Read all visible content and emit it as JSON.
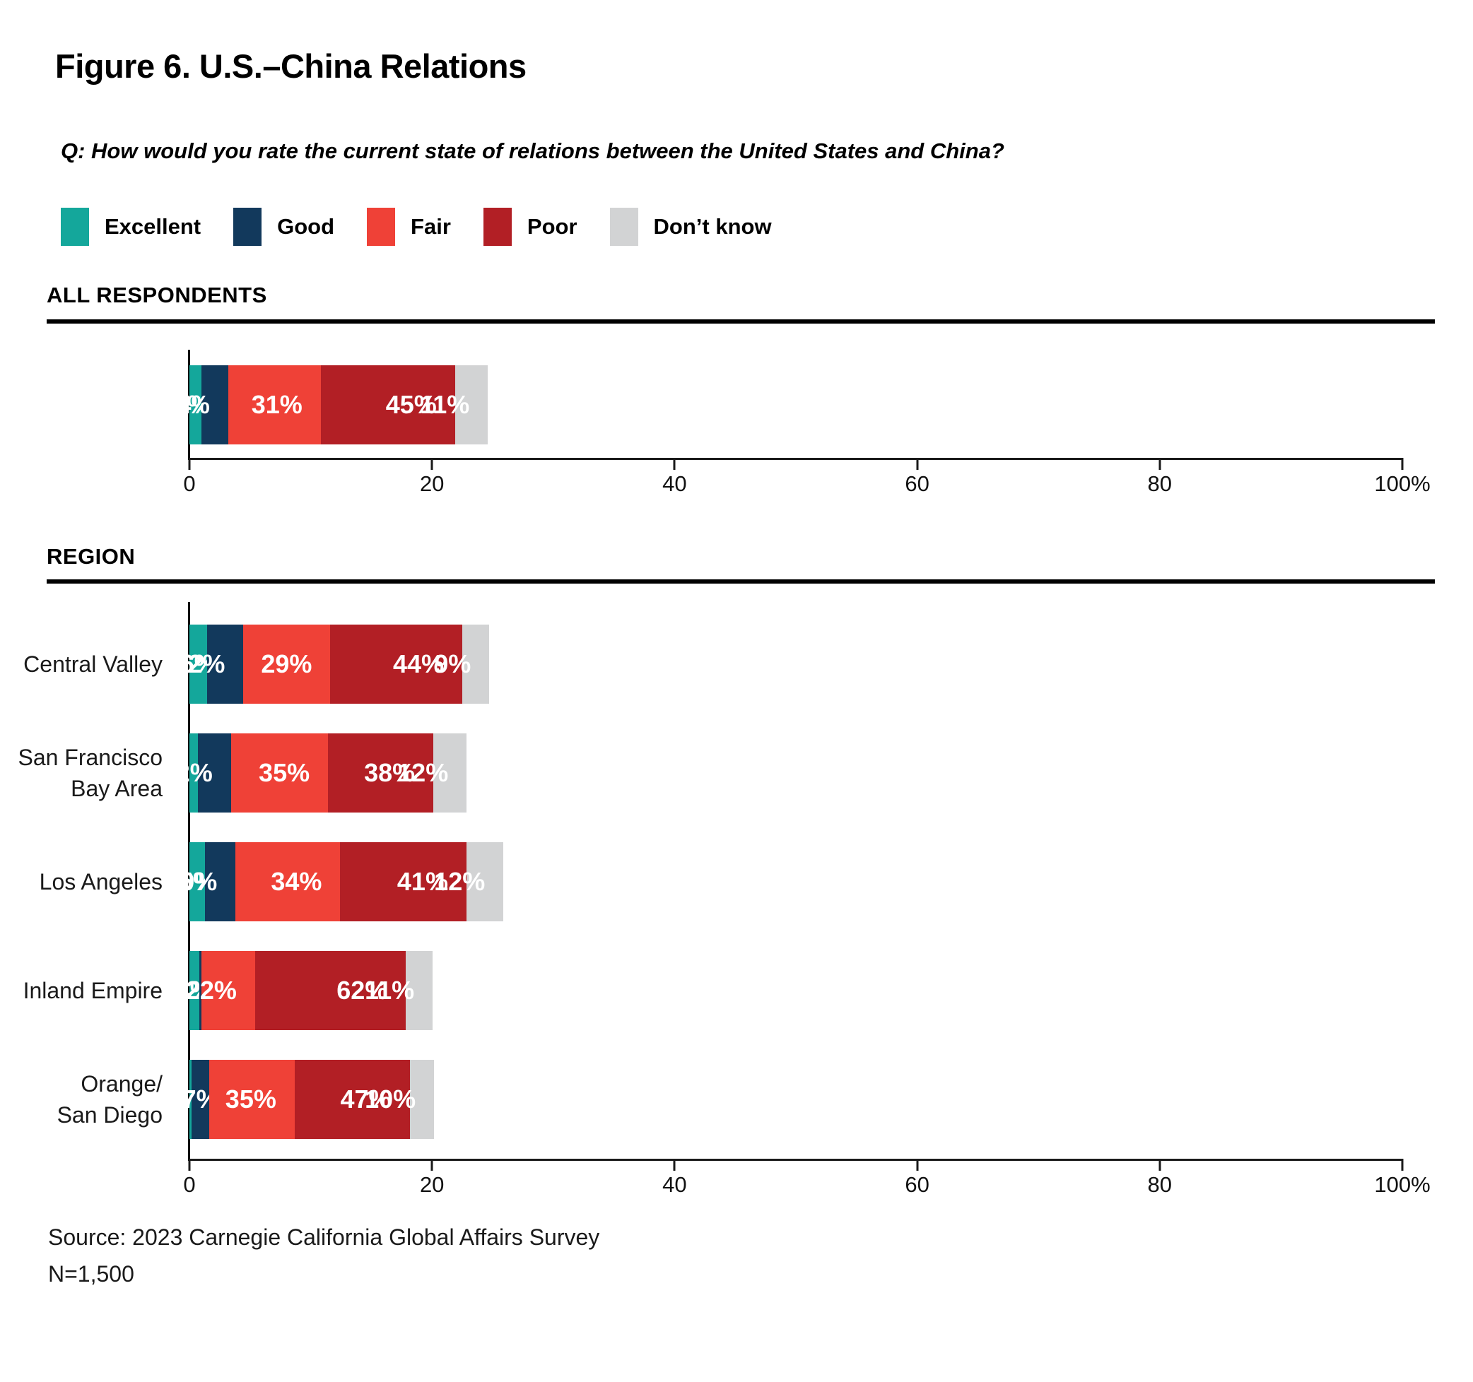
{
  "title": "Figure 6. U.S.–China Relations",
  "question": "Q: How would you rate the current state of relations between the United States and China?",
  "legend": [
    {
      "label": "Excellent",
      "color": "#14A79B"
    },
    {
      "label": "Good",
      "color": "#12395C"
    },
    {
      "label": "Fair",
      "color": "#EF4137"
    },
    {
      "label": "Poor",
      "color": "#B21F25"
    },
    {
      "label": "Don’t know",
      "color": "#D2D3D4"
    }
  ],
  "sections": {
    "all": "ALL RESPONDENTS",
    "region": "REGION"
  },
  "axis": {
    "ticks": [
      "0",
      "20",
      "40",
      "60",
      "80",
      "100%"
    ]
  },
  "rows": [
    {
      "label": [],
      "values": [
        4,
        9,
        31,
        45,
        11
      ],
      "labels": [
        "4%",
        "9%",
        "31%",
        "45%",
        "11%"
      ]
    },
    {
      "label": [
        "Central Valley"
      ],
      "values": [
        6,
        12,
        29,
        44,
        9
      ],
      "labels": [
        "6%",
        "12%",
        "29%",
        "44%",
        "9%"
      ]
    },
    {
      "label": [
        "San Francisco",
        "Bay Area"
      ],
      "values": [
        3,
        12,
        35,
        38,
        12
      ],
      "labels": [
        "",
        "12%",
        "35%",
        "38%",
        "12%"
      ]
    },
    {
      "label": [
        "Los Angeles"
      ],
      "values": [
        5,
        10,
        34,
        41,
        12
      ],
      "labels": [
        "5%",
        "10%",
        "34%",
        "41%",
        "12%"
      ]
    },
    {
      "label": [
        "Inland Empire"
      ],
      "values": [
        4,
        1,
        22,
        62,
        11
      ],
      "labels": [
        "4%",
        "",
        "22%",
        "62%",
        "11%"
      ]
    },
    {
      "label": [
        "Orange/",
        "San Diego"
      ],
      "values": [
        1,
        7,
        35,
        47,
        10
      ],
      "labels": [
        "",
        "7%",
        "35%",
        "47%",
        "10%"
      ]
    }
  ],
  "source": {
    "line1": "Source: 2023 Carnegie California Global Affairs Survey",
    "line2": "N=1,500"
  },
  "chart_data": {
    "type": "bar",
    "stacked": true,
    "orientation": "horizontal",
    "title": "Figure 6. U.S.–China Relations",
    "question": "Q: How would you rate the current state of relations between the United States and China?",
    "response_options": [
      "Excellent",
      "Good",
      "Fair",
      "Poor",
      "Don’t know"
    ],
    "x_axis": {
      "range": [
        0,
        100
      ],
      "ticks": [
        0,
        20,
        40,
        60,
        80,
        100
      ],
      "tick_unit": "%"
    },
    "legend_position": "top",
    "groups": [
      {
        "section": "ALL RESPONDENTS",
        "categories": [
          "All respondents"
        ],
        "series": [
          {
            "name": "Excellent",
            "values": [
              4
            ]
          },
          {
            "name": "Good",
            "values": [
              9
            ]
          },
          {
            "name": "Fair",
            "values": [
              31
            ]
          },
          {
            "name": "Poor",
            "values": [
              45
            ]
          },
          {
            "name": "Don’t know",
            "values": [
              11
            ]
          }
        ]
      },
      {
        "section": "REGION",
        "categories": [
          "Central Valley",
          "San Francisco Bay Area",
          "Los Angeles",
          "Inland Empire",
          "Orange/San Diego"
        ],
        "series": [
          {
            "name": "Excellent",
            "values": [
              6,
              3,
              5,
              4,
              1
            ]
          },
          {
            "name": "Good",
            "values": [
              12,
              12,
              10,
              1,
              7
            ]
          },
          {
            "name": "Fair",
            "values": [
              29,
              35,
              34,
              22,
              35
            ]
          },
          {
            "name": "Poor",
            "values": [
              44,
              38,
              41,
              62,
              47
            ]
          },
          {
            "name": "Don’t know",
            "values": [
              9,
              12,
              12,
              11,
              10
            ]
          }
        ]
      }
    ],
    "source": "Source: 2023 Carnegie California Global Affairs Survey",
    "sample_size": "N=1,500"
  }
}
